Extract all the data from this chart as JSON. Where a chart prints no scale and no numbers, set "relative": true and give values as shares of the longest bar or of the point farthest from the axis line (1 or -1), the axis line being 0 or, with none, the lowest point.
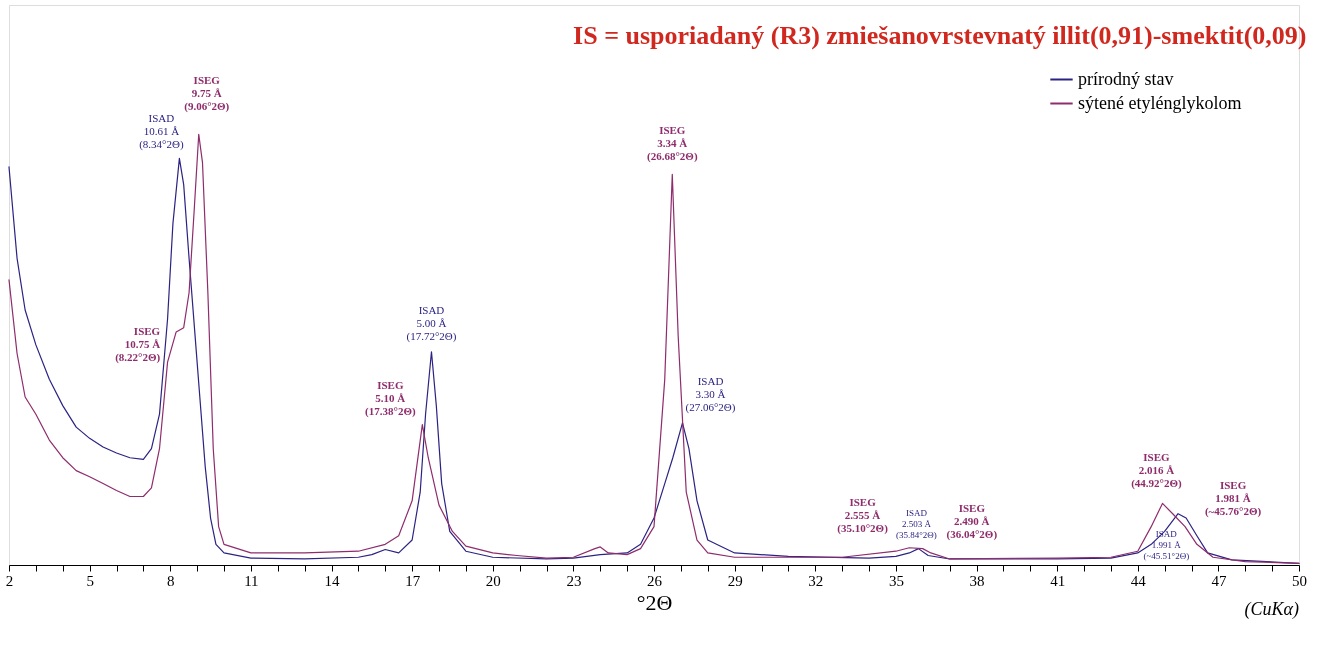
{
  "chart_data": {
    "type": "line",
    "relative": true,
    "title": "IS = usporiadaný (R3) zmiešanovrstevnatý illit(0,91)-smektit(0,09)",
    "xlabel": "°2Θ",
    "xlim": [
      2,
      50
    ],
    "xticks": [
      2,
      {
        "value": 3,
        "label": null
      },
      {
        "value": 4,
        "label": null
      },
      5,
      {
        "value": 6,
        "label": null
      },
      {
        "value": 7,
        "label": null
      },
      8,
      {
        "value": 9,
        "label": null
      },
      {
        "value": 10,
        "label": null
      },
      11,
      {
        "value": 12,
        "label": null
      },
      {
        "value": 13,
        "label": null
      },
      14,
      {
        "value": 15,
        "label": null
      },
      {
        "value": 16,
        "label": null
      },
      17,
      {
        "value": 18,
        "label": null
      },
      {
        "value": 19,
        "label": null
      },
      20,
      {
        "value": 21,
        "label": null
      },
      {
        "value": 22,
        "label": null
      },
      23,
      {
        "value": 24,
        "label": null
      },
      {
        "value": 25,
        "label": null
      },
      26,
      {
        "value": 27,
        "label": null
      },
      {
        "value": 28,
        "label": null
      },
      29,
      {
        "value": 30,
        "label": null
      },
      {
        "value": 31,
        "label": null
      },
      32,
      {
        "value": 33,
        "label": null
      },
      {
        "value": 34,
        "label": null
      },
      35,
      {
        "value": 36,
        "label": null
      },
      {
        "value": 37,
        "label": null
      },
      38,
      {
        "value": 39,
        "label": null
      },
      {
        "value": 40,
        "label": null
      },
      41,
      {
        "value": 42,
        "label": null
      },
      {
        "value": 43,
        "label": null
      },
      44,
      {
        "value": 45,
        "label": null
      },
      {
        "value": 46,
        "label": null
      },
      47,
      {
        "value": 48,
        "label": null
      },
      {
        "value": 49,
        "label": null
      },
      50
    ],
    "tick_labels": "x",
    "grid": false,
    "legend": "top right",
    "series": [
      {
        "name": "prírodný stav",
        "color": "#2b2383",
        "x": [
          2,
          2.3,
          2.6,
          3,
          3.5,
          4,
          4.5,
          5,
          5.5,
          6,
          6.5,
          7,
          7.3,
          7.6,
          7.9,
          8.1,
          8.34,
          8.5,
          8.7,
          8.9,
          9.1,
          9.3,
          9.5,
          9.7,
          10,
          11,
          13,
          15,
          15.5,
          16,
          16.5,
          17,
          17.3,
          17.5,
          17.72,
          17.9,
          18.1,
          18.4,
          19,
          20,
          22,
          23,
          24,
          25,
          25.5,
          26,
          26.4,
          26.7,
          27.06,
          27.3,
          27.6,
          28,
          29,
          31,
          34,
          35,
          35.5,
          35.84,
          36.2,
          37,
          41,
          43,
          44,
          44.5,
          45,
          45.5,
          45.8,
          46.2,
          46.6,
          47.5,
          50
        ],
        "values": [
          0.924,
          0.712,
          0.592,
          0.511,
          0.431,
          0.37,
          0.32,
          0.294,
          0.274,
          0.26,
          0.249,
          0.245,
          0.27,
          0.35,
          0.571,
          0.793,
          0.944,
          0.883,
          0.712,
          0.551,
          0.39,
          0.229,
          0.109,
          0.048,
          0.028,
          0.016,
          0.014,
          0.018,
          0.024,
          0.036,
          0.028,
          0.058,
          0.169,
          0.35,
          0.495,
          0.37,
          0.189,
          0.078,
          0.032,
          0.018,
          0.014,
          0.016,
          0.024,
          0.028,
          0.048,
          0.109,
          0.189,
          0.249,
          0.33,
          0.27,
          0.149,
          0.058,
          0.028,
          0.02,
          0.016,
          0.02,
          0.028,
          0.038,
          0.022,
          0.014,
          0.014,
          0.016,
          0.028,
          0.048,
          0.078,
          0.119,
          0.109,
          0.068,
          0.028,
          0.012,
          0.004
        ]
      },
      {
        "name": "sýtené etylénglykolom",
        "color": "#8e2c6c",
        "x": [
          2,
          2.3,
          2.6,
          3,
          3.5,
          4,
          4.5,
          5,
          5.5,
          6,
          6.5,
          7,
          7.3,
          7.6,
          7.9,
          8.22,
          8.5,
          8.7,
          8.9,
          9.06,
          9.2,
          9.4,
          9.6,
          9.8,
          10,
          11,
          13,
          15,
          16,
          16.5,
          17,
          17.38,
          17.6,
          18,
          18.5,
          19,
          20,
          20.9,
          22,
          23,
          23.8,
          24,
          24.3,
          25,
          25.5,
          26,
          26.4,
          26.68,
          26.9,
          27.2,
          27.6,
          28,
          29,
          33,
          35,
          35.5,
          36,
          36.3,
          37,
          41,
          43,
          44,
          44.5,
          44.92,
          45.3,
          45.76,
          46.2,
          46.8,
          48,
          50
        ],
        "values": [
          0.662,
          0.491,
          0.39,
          0.35,
          0.29,
          0.249,
          0.219,
          0.205,
          0.189,
          0.173,
          0.159,
          0.159,
          0.179,
          0.27,
          0.471,
          0.541,
          0.551,
          0.632,
          0.833,
          1,
          0.934,
          0.632,
          0.27,
          0.089,
          0.048,
          0.028,
          0.028,
          0.032,
          0.048,
          0.068,
          0.149,
          0.326,
          0.249,
          0.139,
          0.078,
          0.044,
          0.028,
          0.022,
          0.016,
          0.018,
          0.038,
          0.042,
          0.028,
          0.024,
          0.038,
          0.089,
          0.431,
          0.907,
          0.531,
          0.169,
          0.058,
          0.028,
          0.018,
          0.018,
          0.032,
          0.04,
          0.038,
          0.028,
          0.014,
          0.016,
          0.018,
          0.032,
          0.089,
          0.143,
          0.119,
          0.089,
          0.048,
          0.018,
          0.008,
          0.004
        ]
      }
    ],
    "annotations": [
      {
        "text": "ISAD\n10.61 Å\n(8.34°2Θ)",
        "x": 8.34,
        "y": 0.944
      },
      {
        "text": "ISEG\n9.75 Å\n(9.06°2Θ)",
        "x": 9.06,
        "y": 1
      },
      {
        "text": "ISEG\n10.75 Å\n(8.22°2Θ)",
        "x": 8.22,
        "y": 0.541
      },
      {
        "text": "ISAD\n5.00 Å\n(17.72°2Θ)",
        "x": 17.72,
        "y": 0.495
      },
      {
        "text": "ISEG\n5.10 Å\n(17.38°2Θ)",
        "x": 17.38,
        "y": 0.326
      },
      {
        "text": "ISEG\n3.34 Å\n(26.68°2Θ)",
        "x": 26.68,
        "y": 0.907
      },
      {
        "text": "ISAD\n3.30 Å\n(27.06°2Θ)",
        "x": 27.06,
        "y": 0.33
      },
      {
        "text": "ISEG\n2.555 Å\n(35.10°2Θ)",
        "x": 35.1,
        "y": 0.032
      },
      {
        "text": "ISAD\n2.503 Å\n(35.84°2Θ)",
        "x": 35.84,
        "y": 0.038
      },
      {
        "text": "ISEG\n2.490 Å\n(36.04°2Θ)",
        "x": 36.04,
        "y": 0.038
      },
      {
        "text": "ISEG\n2.016 Å\n(44.92°2Θ)",
        "x": 44.92,
        "y": 0.143
      },
      {
        "text": "ISEG\n1.981 Å\n(~45.76°2Θ)",
        "x": 45.76,
        "y": 0.089
      },
      {
        "text": "ISAD\n1.991 Å\n(~45.51°2Θ)",
        "x": 45.51,
        "y": 0.119
      },
      "(CuKα)"
    ]
  }
}
